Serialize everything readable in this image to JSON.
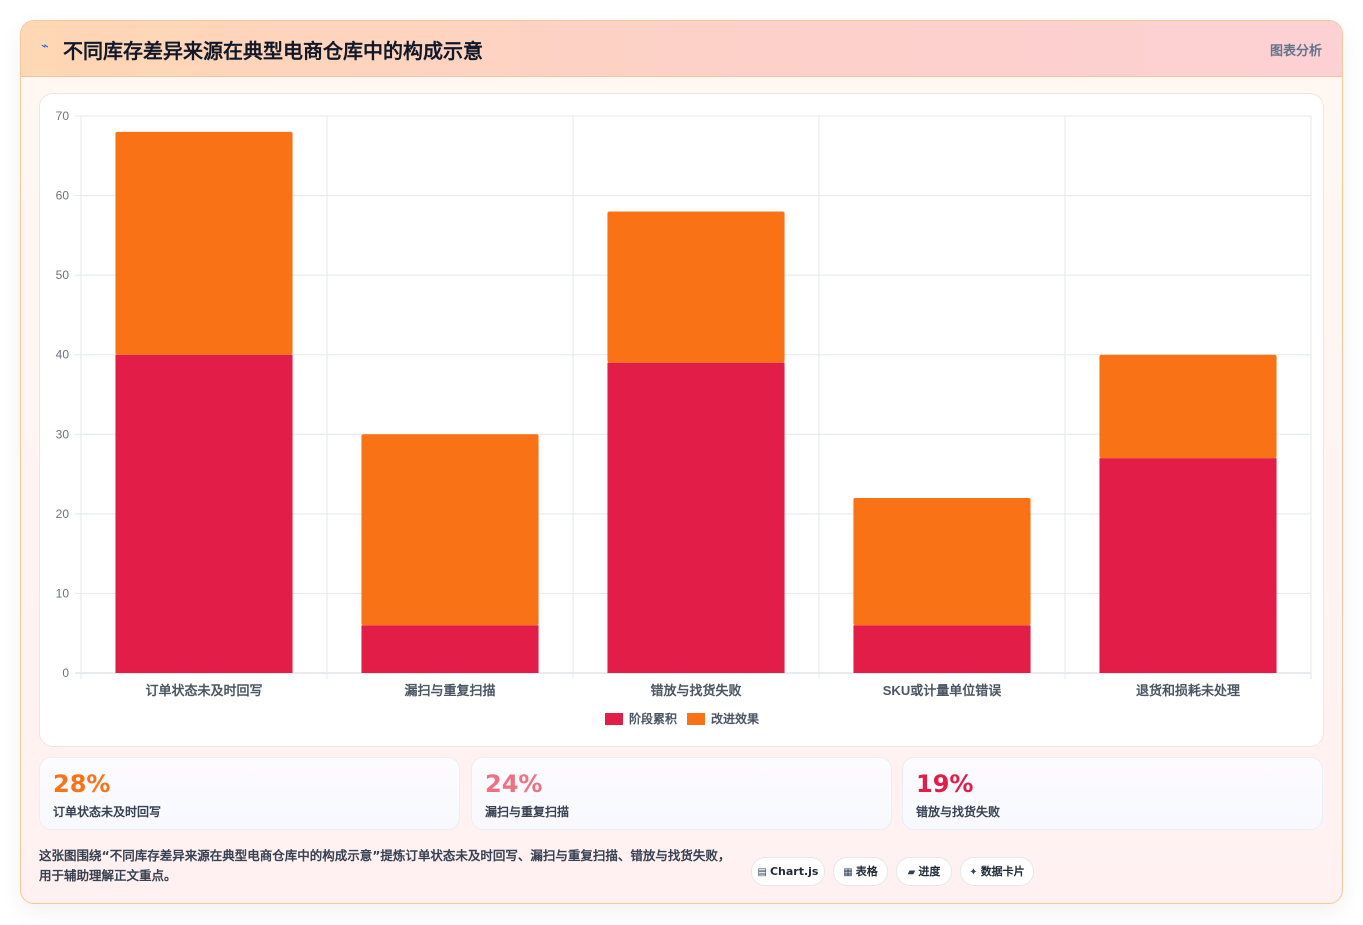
{
  "header": {
    "icon": "chart-line-icon",
    "title": "不同库存差异来源在典型电商仓库中的构成示意",
    "tag": "图表分析"
  },
  "chart_data": {
    "type": "bar",
    "stacked": true,
    "categories": [
      "订单状态未及时回写",
      "漏扫与重复扫描",
      "错放与找货失败",
      "SKU或计量单位错误",
      "退货和损耗未处理"
    ],
    "series": [
      {
        "name": "阶段累积",
        "color": "#e11d48",
        "values": [
          40,
          6,
          39,
          6,
          27
        ]
      },
      {
        "name": "改进效果",
        "color": "#f97316",
        "values": [
          28,
          24,
          19,
          16,
          13
        ]
      }
    ],
    "ylim": [
      0,
      70
    ],
    "yticks": [
      "0",
      "10",
      "20",
      "30",
      "40",
      "50",
      "60",
      "70"
    ],
    "grid": true,
    "legend": "bottom"
  },
  "stats": [
    {
      "value": "28%",
      "label": "订单状态未及时回写",
      "color": "#f97316"
    },
    {
      "value": "24%",
      "label": "漏扫与重复扫描",
      "color": "#f07080"
    },
    {
      "value": "19%",
      "label": "错放与找货失败",
      "color": "#e11d48"
    }
  ],
  "description": "这张图围绕“不同库存差异来源在典型电商仓库中的构成示意”提炼订单状态未及时回写、漏扫与重复扫描、错放与找货失败，用于辅助理解正文重点。",
  "badges": [
    {
      "icon": "table-icon",
      "glyph": "▤",
      "label": "Chart.js"
    },
    {
      "icon": "grid-icon",
      "glyph": "▦",
      "label": "表格"
    },
    {
      "icon": "progress-icon",
      "glyph": "▰",
      "label": "进度"
    },
    {
      "icon": "sparkle-icon",
      "glyph": "✦",
      "label": "数据卡片"
    }
  ]
}
